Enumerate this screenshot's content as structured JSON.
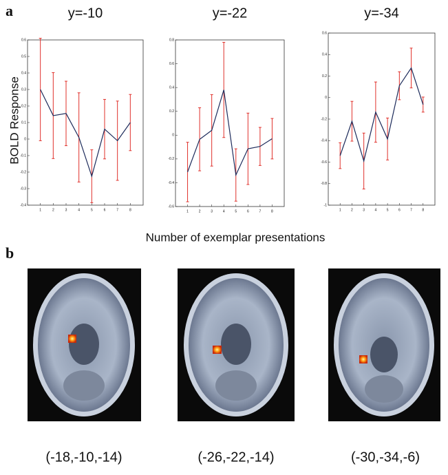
{
  "panels": [
    "a",
    "b"
  ],
  "ylabel": "BOLD Response",
  "xlabel": "Number of exemplar presentations",
  "chart_data": [
    {
      "type": "line",
      "title": "y=-10",
      "categories": [
        "1",
        "2",
        "3",
        "4",
        "5",
        "6",
        "7",
        "8"
      ],
      "series": [
        {
          "color": "#1c2a5a",
          "error_color": "#e0302a",
          "values": [
            0.3,
            0.142,
            0.155,
            0.01,
            -0.225,
            0.06,
            -0.01,
            0.1
          ],
          "errors": [
            0.31,
            0.26,
            0.195,
            0.27,
            0.16,
            0.18,
            0.24,
            0.17
          ]
        }
      ],
      "ylim": [
        -0.4,
        0.6
      ],
      "yticks": [
        -0.4,
        -0.3,
        -0.2,
        -0.1,
        0,
        0.1,
        0.2,
        0.3,
        0.4,
        0.5,
        0.6
      ]
    },
    {
      "type": "line",
      "title": "y=-22",
      "categories": [
        "1",
        "2",
        "3",
        "4",
        "5",
        "6",
        "7",
        "8"
      ],
      "series": [
        {
          "color": "#1c2a5a",
          "error_color": "#e0302a",
          "values": [
            -0.31,
            -0.035,
            0.04,
            0.38,
            -0.335,
            -0.115,
            -0.095,
            -0.03
          ],
          "errors": [
            0.25,
            0.265,
            0.3,
            0.4,
            0.22,
            0.3,
            0.16,
            0.17
          ]
        }
      ],
      "ylim": [
        -0.6,
        0.8
      ],
      "yticks": [
        -0.6,
        -0.4,
        -0.2,
        0,
        0.2,
        0.4,
        0.6,
        0.8
      ]
    },
    {
      "type": "line",
      "title": "y=-34",
      "categories": [
        "1",
        "2",
        "3",
        "4",
        "5",
        "6",
        "7",
        "8"
      ],
      "series": [
        {
          "color": "#1c2a5a",
          "error_color": "#e0302a",
          "values": [
            -0.54,
            -0.22,
            -0.59,
            -0.135,
            -0.385,
            0.11,
            0.275,
            -0.065
          ],
          "errors": [
            0.12,
            0.185,
            0.26,
            0.28,
            0.195,
            0.13,
            0.185,
            0.07
          ]
        }
      ],
      "ylim": [
        -1,
        0.6
      ],
      "yticks": [
        -1,
        -0.8,
        -0.6,
        -0.4,
        -0.2,
        0,
        0.2,
        0.4,
        0.6
      ]
    }
  ],
  "captions": [
    "(-18,-10,-14)",
    "(-26,-22,-14)",
    "(-30,-34,-6)"
  ]
}
